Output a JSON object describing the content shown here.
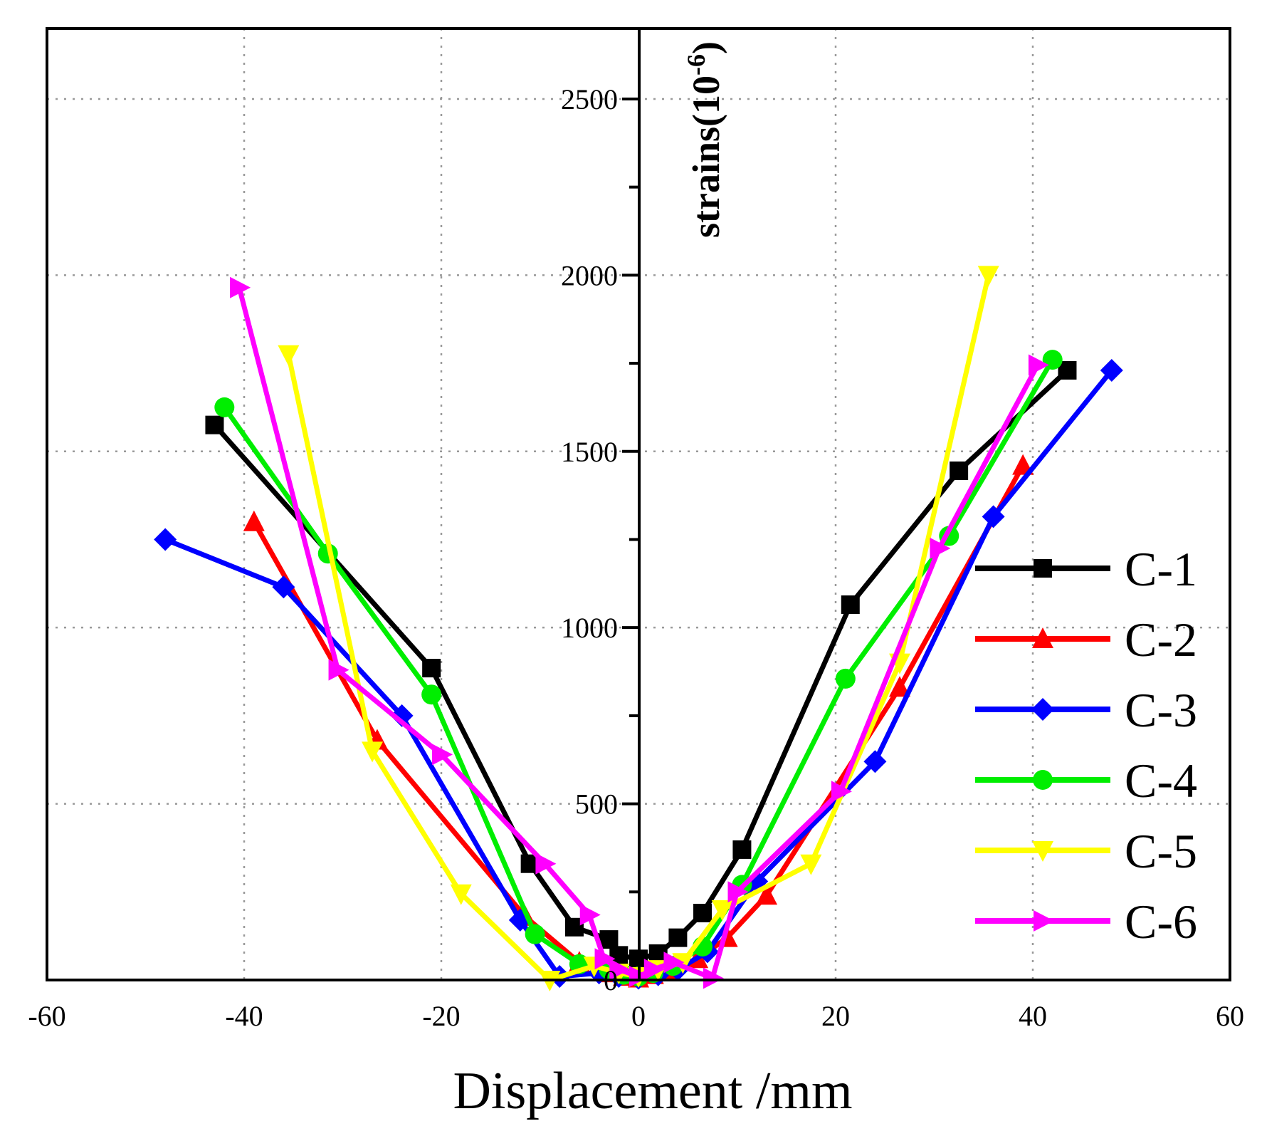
{
  "chart_data": {
    "type": "line",
    "title": "",
    "xlabel": "Displacement /mm",
    "ylabel": {
      "base": "strains(10",
      "exponent": "-6",
      "close": ")"
    },
    "xlim": [
      -60,
      60
    ],
    "ylim": [
      0,
      2700
    ],
    "xticks": [
      -60,
      -40,
      -20,
      0,
      20,
      40,
      60
    ],
    "yticks": [
      0,
      500,
      1000,
      1500,
      2000,
      2500
    ],
    "tick_labels_x": [
      "-60",
      "-40",
      "-20",
      "0",
      "20",
      "40",
      "60"
    ],
    "tick_labels_y": [
      "0",
      "500",
      "1000",
      "1500",
      "2000",
      "2500"
    ],
    "grid": true,
    "legend_position": "right",
    "series": [
      {
        "name": "C-1",
        "color": "#000000",
        "marker": "square",
        "x": [
          -43,
          -21,
          -11,
          -6.5,
          -3,
          -2,
          0,
          2,
          4,
          6.5,
          10.5,
          21.5,
          32.5,
          43.5
        ],
        "y": [
          1575,
          885,
          330,
          150,
          115,
          70,
          60,
          75,
          120,
          190,
          370,
          1065,
          1445,
          1730
        ]
      },
      {
        "name": "C-2",
        "color": "#ff0000",
        "marker": "triangle-up",
        "x": [
          -39,
          -26.5,
          -11.5,
          -6,
          -3,
          -1.5,
          0,
          1.5,
          3,
          6,
          9,
          13,
          26.5,
          39
        ],
        "y": [
          1300,
          680,
          180,
          50,
          20,
          10,
          5,
          15,
          30,
          60,
          120,
          240,
          830,
          1460
        ]
      },
      {
        "name": "C-3",
        "color": "#0000ff",
        "marker": "diamond",
        "x": [
          -48,
          -36,
          -24,
          -12,
          -8,
          -4,
          -2,
          0,
          2,
          4,
          7,
          12,
          24,
          36,
          48
        ],
        "y": [
          1250,
          1115,
          750,
          170,
          10,
          20,
          10,
          5,
          15,
          30,
          80,
          280,
          620,
          1315,
          1730
        ]
      },
      {
        "name": "C-4",
        "color": "#00ee00",
        "marker": "circle",
        "x": [
          -42,
          -31.5,
          -21,
          -10.5,
          -6,
          -3,
          -1.5,
          0,
          1.5,
          3.5,
          6.5,
          10.5,
          21,
          31.5,
          42
        ],
        "y": [
          1625,
          1210,
          810,
          130,
          45,
          30,
          15,
          10,
          20,
          40,
          95,
          270,
          855,
          1260,
          1760
        ]
      },
      {
        "name": "C-5",
        "color": "#ffff00",
        "marker": "triangle-down",
        "x": [
          -35.5,
          -27,
          -18,
          -9,
          -4.5,
          -2,
          0,
          2,
          4.5,
          8.5,
          17.5,
          26.5,
          35.5
        ],
        "y": [
          1775,
          650,
          245,
          0,
          40,
          20,
          10,
          30,
          50,
          200,
          330,
          900,
          2000
        ]
      },
      {
        "name": "C-6",
        "color": "#ff00ff",
        "marker": "triangle-right",
        "x": [
          -40.5,
          -30.5,
          -20,
          -9.5,
          -5,
          -3.5,
          -2,
          0,
          1.5,
          3.5,
          7.5,
          10,
          20.5,
          30.5,
          40.5
        ],
        "y": [
          1965,
          880,
          640,
          330,
          185,
          60,
          30,
          10,
          30,
          50,
          5,
          250,
          535,
          1225,
          1745
        ]
      }
    ]
  }
}
